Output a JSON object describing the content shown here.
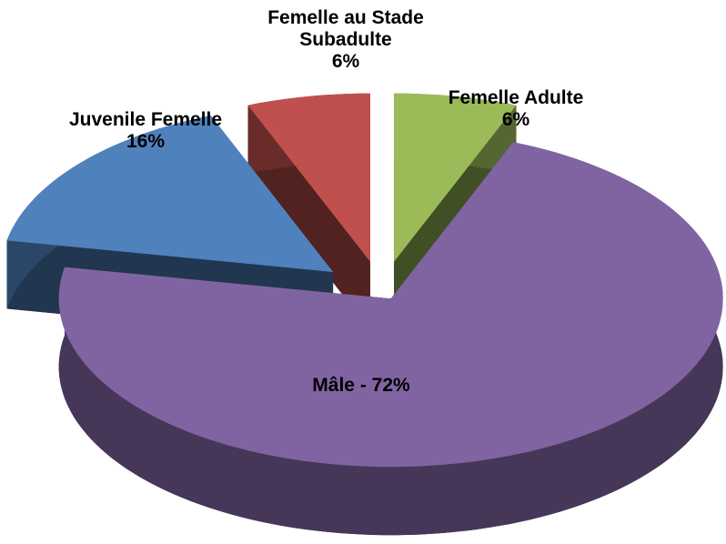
{
  "chart_data": {
    "type": "pie3d",
    "categories": [
      "Juvenile Femelle",
      "Femelle au Stade Subadulte",
      "Femelle Adulte",
      null
    ],
    "values": [
      16,
      6,
      6,
      72
    ],
    "value_labels": [
      "16%",
      "6%",
      "6%",
      "Mâle - 72%"
    ],
    "colors": [
      "#4f81bd",
      "#c0504d",
      "#9bbb59",
      "#8064a2"
    ]
  }
}
